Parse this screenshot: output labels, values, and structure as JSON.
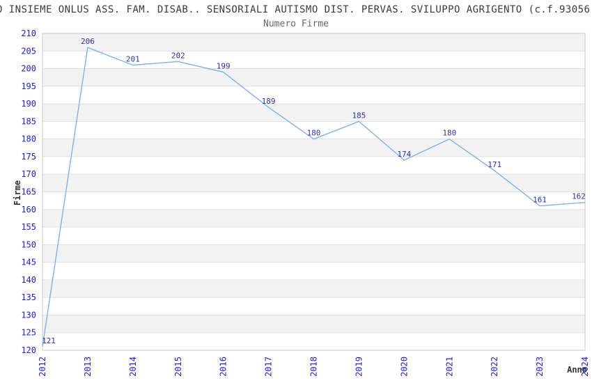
{
  "header": {
    "title": "O INSIEME ONLUS ASS. FAM. DISAB.. SENSORIALI AUTISMO DIST. PERVAS. SVILUPPO AGRIGENTO (c.f.93056",
    "subtitle": "Numero Firme"
  },
  "chart_data": {
    "type": "line",
    "title": "Numero Firme",
    "xlabel": "Anno",
    "ylabel": "Firme",
    "categories": [
      2012,
      2013,
      2014,
      2015,
      2016,
      2017,
      2018,
      2019,
      2020,
      2021,
      2022,
      2023,
      2024
    ],
    "series": [
      {
        "name": "Numero Firme",
        "values": [
          121,
          206,
          201,
          202,
          199,
          189,
          180,
          185,
          174,
          180,
          171,
          161,
          162
        ]
      }
    ],
    "ylim": [
      120,
      210
    ],
    "ytick_step": 5,
    "grid": "horizontal-bands-alternating",
    "legend_position": "none",
    "data_labels_shown": true,
    "x_tick_rotation_deg": -90,
    "colors": {
      "line": "#7fb2e5",
      "tick_labels": "#2222cc",
      "data_labels": "#31319e",
      "band_fill": "#f2f2f2",
      "band_alt_fill": "#ffffff",
      "gridline": "#e0e0e0",
      "plot_border": "#c8c8c8",
      "title_text": "#3a3a3a",
      "subtitle_text": "#666666",
      "axis_title_text": "#333333"
    }
  }
}
